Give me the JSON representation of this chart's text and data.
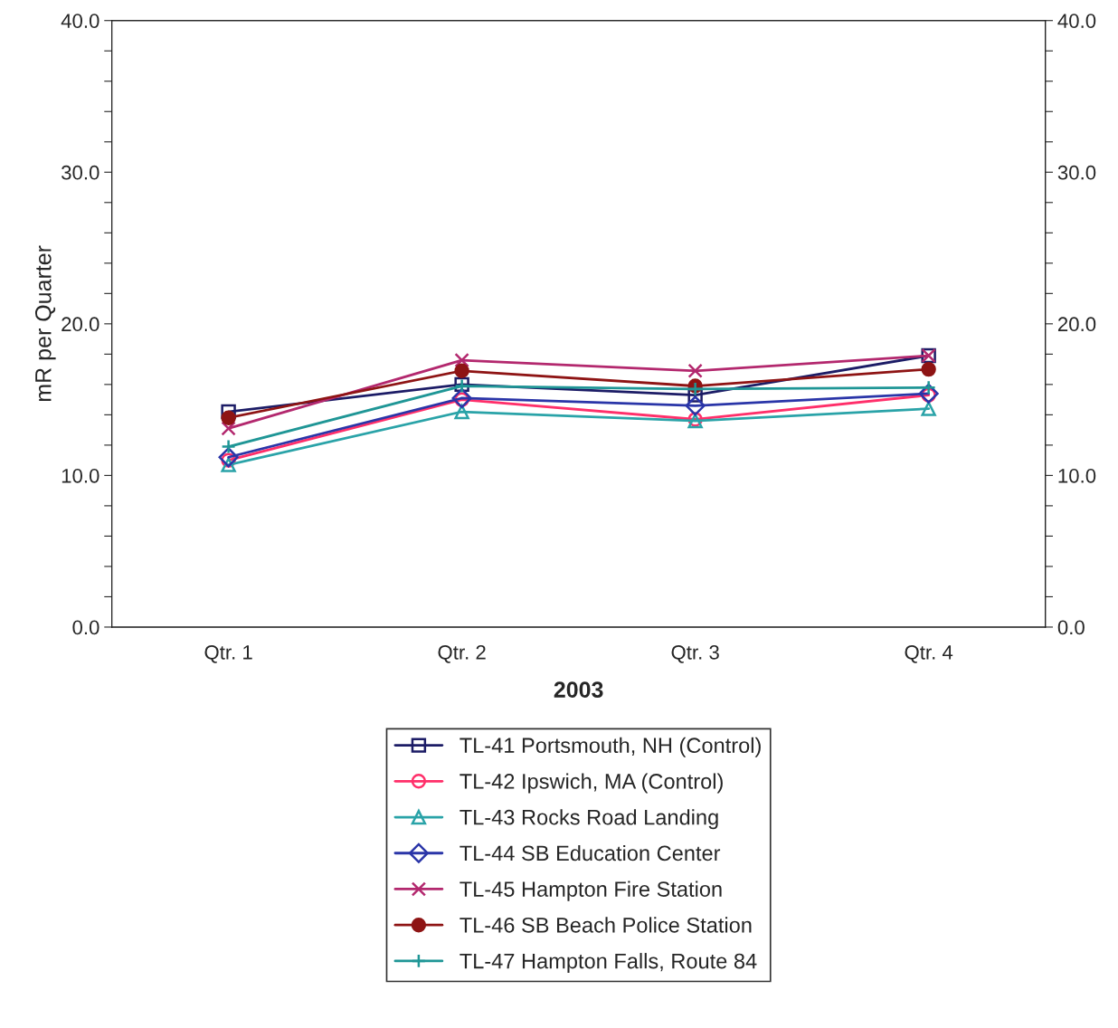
{
  "chart_data": {
    "type": "line",
    "xlabel": "2003",
    "ylabel": "mR per Quarter",
    "categories": [
      "Qtr. 1",
      "Qtr. 2",
      "Qtr. 3",
      "Qtr. 4"
    ],
    "ylim": [
      0,
      40
    ],
    "yticks": [
      {
        "value": 0,
        "label": "0.0"
      },
      {
        "value": 2,
        "label": null
      },
      {
        "value": 4,
        "label": null
      },
      {
        "value": 6,
        "label": null
      },
      {
        "value": 8,
        "label": null
      },
      {
        "value": 10,
        "label": "10.0"
      },
      {
        "value": 12,
        "label": null
      },
      {
        "value": 14,
        "label": null
      },
      {
        "value": 16,
        "label": null
      },
      {
        "value": 18,
        "label": null
      },
      {
        "value": 20,
        "label": "20.0"
      },
      {
        "value": 22,
        "label": null
      },
      {
        "value": 24,
        "label": null
      },
      {
        "value": 26,
        "label": null
      },
      {
        "value": 28,
        "label": null
      },
      {
        "value": 30,
        "label": "30.0"
      },
      {
        "value": 32,
        "label": null
      },
      {
        "value": 34,
        "label": null
      },
      {
        "value": 36,
        "label": null
      },
      {
        "value": 38,
        "label": null
      },
      {
        "value": 40,
        "label": "40.0"
      }
    ],
    "y2lim": [
      0,
      40
    ],
    "y2ticks": [
      {
        "value": 0,
        "label": "0.0"
      },
      {
        "value": 2,
        "label": null
      },
      {
        "value": 4,
        "label": null
      },
      {
        "value": 6,
        "label": null
      },
      {
        "value": 8,
        "label": null
      },
      {
        "value": 10,
        "label": "10.0"
      },
      {
        "value": 12,
        "label": null
      },
      {
        "value": 14,
        "label": null
      },
      {
        "value": 16,
        "label": null
      },
      {
        "value": 18,
        "label": null
      },
      {
        "value": 20,
        "label": "20.0"
      },
      {
        "value": 22,
        "label": null
      },
      {
        "value": 24,
        "label": null
      },
      {
        "value": 26,
        "label": null
      },
      {
        "value": 28,
        "label": null
      },
      {
        "value": 30,
        "label": "30.0"
      },
      {
        "value": 32,
        "label": null
      },
      {
        "value": 34,
        "label": null
      },
      {
        "value": 36,
        "label": null
      },
      {
        "value": 38,
        "label": null
      },
      {
        "value": 40,
        "label": "40.0"
      }
    ],
    "grid": false,
    "legend": "bottom",
    "line_style": "solid",
    "series": [
      {
        "name": "TL-41 Portsmouth, NH (Control)",
        "color": "#1c1c66",
        "marker": "square",
        "values": [
          14.2,
          16.0,
          15.3,
          17.9
        ]
      },
      {
        "name": "TL-42 Ipswich, MA (Control)",
        "color": "#ff2f6a",
        "marker": "circle",
        "values": [
          11.0,
          15.0,
          13.7,
          15.3
        ]
      },
      {
        "name": "TL-43 Rocks Road Landing",
        "color": "#2aa3a8",
        "marker": "triangle",
        "values": [
          10.7,
          14.2,
          13.6,
          14.4
        ]
      },
      {
        "name": "TL-44 SB Education Center",
        "color": "#2a35a8",
        "marker": "diamond",
        "values": [
          11.2,
          15.1,
          14.6,
          15.4
        ]
      },
      {
        "name": "TL-45 Hampton Fire Station",
        "color": "#b3286e",
        "marker": "cross",
        "values": [
          13.1,
          17.6,
          16.9,
          17.9
        ]
      },
      {
        "name": "TL-46 SB Beach Police Station",
        "color": "#8e1414",
        "marker": "filled_circle",
        "values": [
          13.8,
          16.9,
          15.9,
          17.0
        ]
      },
      {
        "name": "TL-47 Hampton Falls, Route 84",
        "color": "#1f9696",
        "marker": "plus",
        "values": [
          11.9,
          15.9,
          15.7,
          15.8
        ]
      }
    ]
  }
}
